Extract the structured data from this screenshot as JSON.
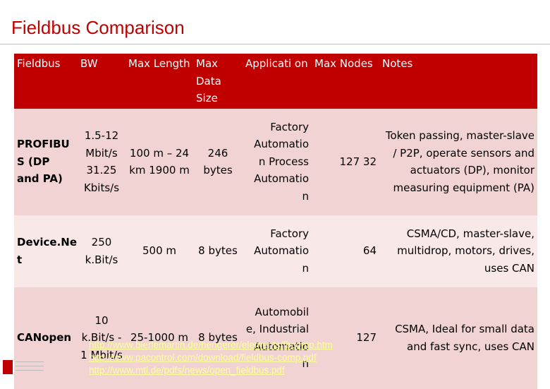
{
  "slide": {
    "title": "Fieldbus Comparison"
  },
  "table": {
    "headers": [
      "Fieldbus",
      "BW",
      "Max Length",
      "Max Data Size",
      "Applicati on",
      "Max Nodes",
      "Notes"
    ],
    "rows": [
      {
        "fieldbus": "PROFIBU S (DP and PA)",
        "bw": "1.5-12 Mbit/s 31.25 Kbits/s",
        "max_length": "100 m – 24 km 1900 m",
        "max_data_size": "246 bytes",
        "application": "Factory Automatio n Process Automatio n",
        "max_nodes": "127 32",
        "notes": "Token passing, master-slave / P2P, operate sensors and actuators (DP), monitor measuring equipment (PA)"
      },
      {
        "fieldbus": "Device.Ne t",
        "bw": "250 k.Bit/s",
        "max_length": "500 m",
        "max_data_size": "8 bytes",
        "application": "Factory Automatio n",
        "max_nodes": "64",
        "notes": "CSMA/CD, master-slave, multidrop, motors, drives, uses CAN"
      },
      {
        "fieldbus": "CANopen",
        "bw": "10 k.Bit/s - 1 Mbit/s",
        "max_length": "25-1000 m",
        "max_data_size": "8 bytes",
        "application": "Automobil e, Industrial Automatio n",
        "max_nodes": "127",
        "notes": "CSMA, Ideal for small data and fast sync, uses CAN"
      }
    ]
  },
  "sources": [
    "http://www.bierlemartin.de/hengerer/elements/fbcomp.htm",
    "http://www.pacontrol.com/download/fieldbus-comp.pdf",
    "http://www.mtl.de/pdfs/news/open_fieldbus.pdf"
  ],
  "colors": {
    "accent": "#c00000",
    "row_dark": "#f2d3d3",
    "row_light": "#f9e8e8",
    "link": "#ffff99"
  }
}
